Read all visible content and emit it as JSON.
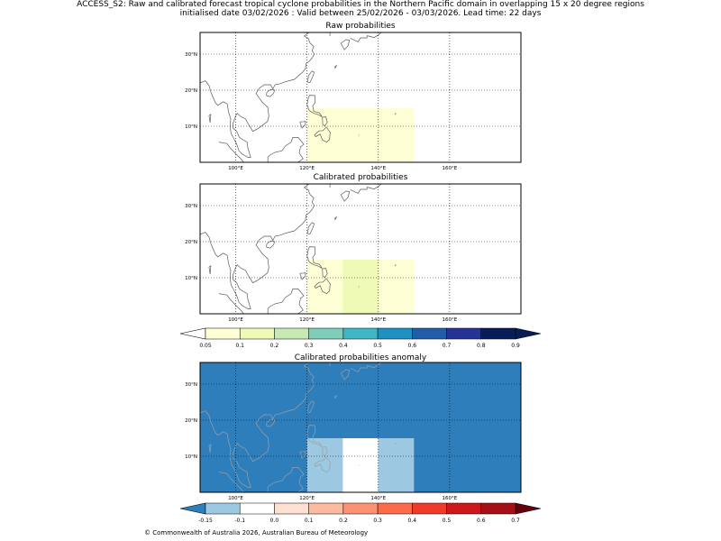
{
  "header": {
    "title_line1": "ACCESS_S2: Raw and calibrated forecast tropical cyclone probabilities in the Northern Pacific domain in overlapping 15 x 20 degree regions",
    "title_line2": "initialised date 03/02/2026 :  Valid between 25/02/2026 - 03/03/2026. Lead time: 22 days"
  },
  "panels": [
    {
      "id": "raw",
      "title": "Raw probabilities",
      "boxes": [
        {
          "lon_min": 120,
          "lon_max": 150,
          "lat_min": 0,
          "lat_max": 15,
          "value": 0.08,
          "color": "#ffffd6"
        }
      ]
    },
    {
      "id": "calibrated",
      "title": "Calibrated probabilities",
      "boxes": [
        {
          "lon_min": 120,
          "lon_max": 130,
          "lat_min": 0,
          "lat_max": 15,
          "value": 0.08,
          "color": "#ffffd6"
        },
        {
          "lon_min": 130,
          "lon_max": 140,
          "lat_min": 0,
          "lat_max": 15,
          "value": 0.12,
          "color": "#eefab6"
        },
        {
          "lon_min": 140,
          "lon_max": 150,
          "lat_min": 0,
          "lat_max": 15,
          "value": 0.08,
          "color": "#ffffd6"
        }
      ]
    },
    {
      "id": "anomaly",
      "title": "Calibrated probabilities anomaly",
      "background": "#2e7ebc",
      "boxes": [
        {
          "lon_min": 120,
          "lon_max": 130,
          "lat_min": 0,
          "lat_max": 15,
          "value": -0.1,
          "color": "#9dc8e2"
        },
        {
          "lon_min": 130,
          "lon_max": 140,
          "lat_min": 0,
          "lat_max": 15,
          "value": 0.0,
          "color": "#ffffff"
        },
        {
          "lon_min": 140,
          "lon_max": 150,
          "lat_min": 0,
          "lat_max": 15,
          "value": -0.1,
          "color": "#9dc8e2"
        }
      ]
    }
  ],
  "map_axes": {
    "lon_range": [
      90,
      180
    ],
    "lat_range": [
      0,
      36
    ],
    "lon_ticks": [
      100,
      120,
      140,
      160
    ],
    "lon_tick_labels": [
      "100°E",
      "120°E",
      "140°E",
      "160°E"
    ],
    "lat_ticks": [
      10,
      20,
      30
    ],
    "lat_tick_labels": [
      "10°N",
      "20°N",
      "30°N"
    ]
  },
  "colorbar_prob": {
    "labels": [
      "0.05",
      "0.1",
      "0.2",
      "0.3",
      "0.4",
      "0.5",
      "0.6",
      "0.7",
      "0.8",
      "0.9"
    ],
    "colors": [
      "#ffffd6",
      "#eefab6",
      "#c7e9b4",
      "#7fcdbb",
      "#40b6c4",
      "#1e91c0",
      "#225ea8",
      "#253494",
      "#081d58"
    ],
    "under_color": "#ffffff",
    "over_color": "#081d58"
  },
  "colorbar_anom": {
    "labels": [
      "-0.15",
      "-0.1",
      "0.0",
      "0.1",
      "0.2",
      "0.3",
      "0.4",
      "0.5",
      "0.6",
      "0.7"
    ],
    "colors": [
      "#9dc8e2",
      "#ffffff",
      "#fee0d2",
      "#fcbba1",
      "#fc9272",
      "#fb6a4a",
      "#ef3b2c",
      "#cb181d",
      "#a50f15"
    ],
    "under_color": "#2e7ebc",
    "over_color": "#67000d"
  },
  "footer": {
    "copyright": "© Commonwealth of Australia 2026, Australian Bureau of Meteorology"
  }
}
